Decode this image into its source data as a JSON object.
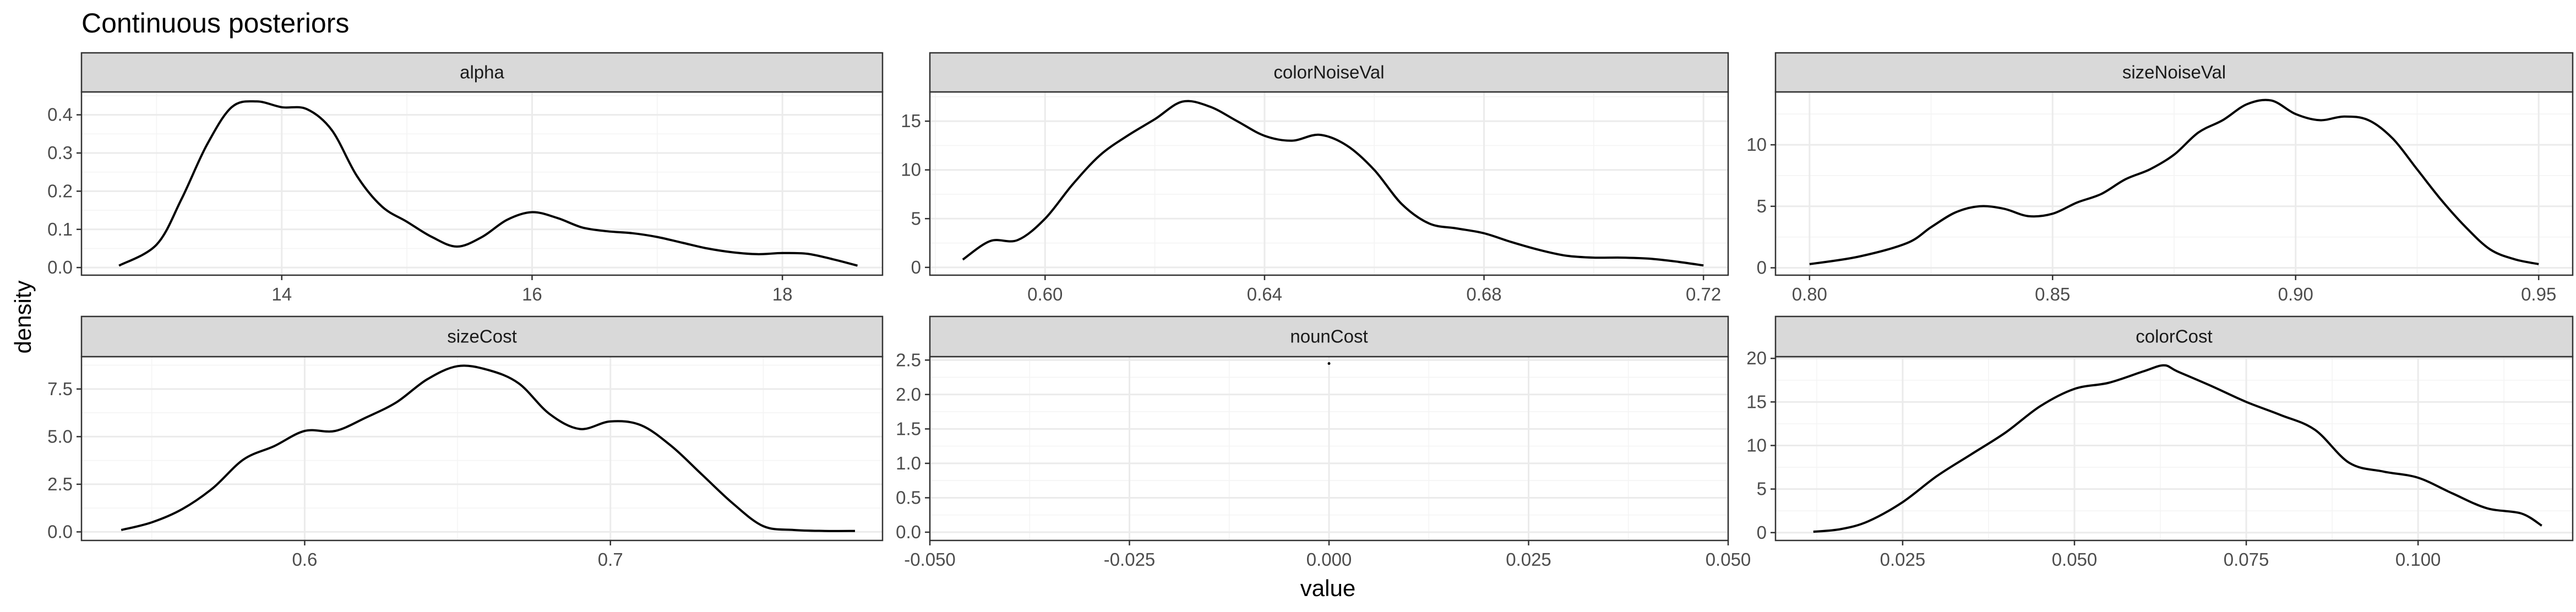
{
  "chart_data": {
    "type": "line",
    "title": "Continuous posteriors",
    "xlabel": "value",
    "ylabel": "density",
    "grid": true,
    "legend": "none",
    "colors": {
      "line": "#000000",
      "strip": "#d9d9d9",
      "grid": "#ebebeb"
    },
    "panels": [
      {
        "name": "alpha",
        "xlim": [
          12.4,
          18.8
        ],
        "ylim": [
          -0.02,
          0.46
        ],
        "xticks": [
          {
            "v": 14,
            "label": "14"
          },
          {
            "v": 16,
            "label": "16"
          },
          {
            "v": 18,
            "label": "18"
          }
        ],
        "yticks": [
          {
            "v": 0,
            "label": "0.0"
          },
          {
            "v": 0.1,
            "label": "0.1"
          },
          {
            "v": 0.2,
            "label": "0.2"
          },
          {
            "v": 0.3,
            "label": "0.3"
          },
          {
            "v": 0.4,
            "label": "0.4"
          }
        ],
        "x": [
          12.7,
          13.0,
          13.2,
          13.4,
          13.6,
          13.8,
          14.0,
          14.2,
          14.4,
          14.6,
          14.8,
          15.0,
          15.2,
          15.4,
          15.6,
          15.8,
          16.0,
          16.2,
          16.4,
          16.6,
          16.8,
          17.0,
          17.2,
          17.4,
          17.6,
          17.8,
          18.0,
          18.2,
          18.4,
          18.6
        ],
        "y": [
          0.005,
          0.06,
          0.18,
          0.32,
          0.42,
          0.435,
          0.42,
          0.415,
          0.36,
          0.24,
          0.16,
          0.12,
          0.08,
          0.055,
          0.08,
          0.125,
          0.145,
          0.13,
          0.105,
          0.095,
          0.09,
          0.08,
          0.065,
          0.05,
          0.04,
          0.035,
          0.038,
          0.036,
          0.022,
          0.005
        ]
      },
      {
        "name": "colorNoiseVal",
        "xlim": [
          0.579,
          0.7245
        ],
        "ylim": [
          -0.8,
          18
        ],
        "xticks": [
          {
            "v": 0.6,
            "label": "0.60"
          },
          {
            "v": 0.64,
            "label": "0.64"
          },
          {
            "v": 0.68,
            "label": "0.68"
          },
          {
            "v": 0.72,
            "label": "0.72"
          }
        ],
        "yticks": [
          {
            "v": 0,
            "label": "0"
          },
          {
            "v": 5,
            "label": "5"
          },
          {
            "v": 10,
            "label": "10"
          },
          {
            "v": 15,
            "label": "15"
          }
        ],
        "x": [
          0.585,
          0.59,
          0.595,
          0.6,
          0.605,
          0.61,
          0.615,
          0.62,
          0.625,
          0.63,
          0.635,
          0.64,
          0.645,
          0.65,
          0.655,
          0.66,
          0.665,
          0.67,
          0.675,
          0.68,
          0.685,
          0.69,
          0.695,
          0.7,
          0.705,
          0.71,
          0.715,
          0.72
        ],
        "y": [
          0.8,
          2.7,
          2.8,
          5.0,
          8.5,
          11.5,
          13.5,
          15.2,
          17.0,
          16.5,
          15.0,
          13.5,
          13.0,
          13.6,
          12.5,
          10.0,
          6.5,
          4.5,
          4.0,
          3.5,
          2.6,
          1.8,
          1.2,
          1.0,
          1.0,
          0.9,
          0.6,
          0.2
        ]
      },
      {
        "name": "sizeNoiseVal",
        "xlim": [
          0.793,
          0.957
        ],
        "ylim": [
          -0.6,
          14.3
        ],
        "xticks": [
          {
            "v": 0.8,
            "label": "0.80"
          },
          {
            "v": 0.85,
            "label": "0.85"
          },
          {
            "v": 0.9,
            "label": "0.90"
          },
          {
            "v": 0.95,
            "label": "0.95"
          }
        ],
        "yticks": [
          {
            "v": 0,
            "label": "0"
          },
          {
            "v": 5,
            "label": "5"
          },
          {
            "v": 10,
            "label": "10"
          }
        ],
        "x": [
          0.8,
          0.81,
          0.82,
          0.825,
          0.83,
          0.835,
          0.84,
          0.845,
          0.85,
          0.855,
          0.86,
          0.865,
          0.87,
          0.875,
          0.88,
          0.885,
          0.89,
          0.895,
          0.9,
          0.905,
          0.91,
          0.915,
          0.92,
          0.925,
          0.93,
          0.935,
          0.94,
          0.945,
          0.95
        ],
        "y": [
          0.3,
          0.9,
          2.0,
          3.3,
          4.5,
          5.0,
          4.8,
          4.2,
          4.4,
          5.3,
          6.0,
          7.2,
          8.0,
          9.2,
          11.0,
          12.0,
          13.3,
          13.6,
          12.5,
          12.0,
          12.3,
          12.0,
          10.5,
          8.0,
          5.5,
          3.3,
          1.5,
          0.7,
          0.3
        ]
      },
      {
        "name": "sizeCost",
        "xlim": [
          0.527,
          0.789
        ],
        "ylim": [
          -0.45,
          9.2
        ],
        "xticks": [
          {
            "v": 0.6,
            "label": "0.6"
          },
          {
            "v": 0.7,
            "label": "0.7"
          }
        ],
        "yticks": [
          {
            "v": 0,
            "label": "0.0"
          },
          {
            "v": 2.5,
            "label": "2.5"
          },
          {
            "v": 5.0,
            "label": "5.0"
          },
          {
            "v": 7.5,
            "label": "7.5"
          }
        ],
        "x": [
          0.54,
          0.55,
          0.56,
          0.57,
          0.58,
          0.59,
          0.6,
          0.61,
          0.62,
          0.63,
          0.64,
          0.65,
          0.66,
          0.67,
          0.68,
          0.69,
          0.7,
          0.71,
          0.72,
          0.73,
          0.74,
          0.75,
          0.76,
          0.77,
          0.78
        ],
        "y": [
          0.1,
          0.5,
          1.2,
          2.3,
          3.8,
          4.5,
          5.3,
          5.3,
          6.0,
          6.8,
          8.0,
          8.7,
          8.5,
          7.8,
          6.2,
          5.4,
          5.8,
          5.6,
          4.5,
          3.0,
          1.5,
          0.3,
          0.1,
          0.05,
          0.05
        ]
      },
      {
        "name": "nounCost",
        "xlim": [
          -0.05,
          0.05
        ],
        "ylim": [
          -0.12,
          2.55
        ],
        "xticks": [
          {
            "v": -0.05,
            "label": "-0.050"
          },
          {
            "v": -0.025,
            "label": "-0.025"
          },
          {
            "v": 0.0,
            "label": "0.000"
          },
          {
            "v": 0.025,
            "label": "0.025"
          },
          {
            "v": 0.05,
            "label": "0.050"
          }
        ],
        "yticks": [
          {
            "v": 0,
            "label": "0.0"
          },
          {
            "v": 0.5,
            "label": "0.5"
          },
          {
            "v": 1.0,
            "label": "1.0"
          },
          {
            "v": 1.5,
            "label": "1.5"
          },
          {
            "v": 2.0,
            "label": "2.0"
          },
          {
            "v": 2.5,
            "label": "2.5"
          }
        ],
        "x": [
          0.0
        ],
        "y": [
          2.45
        ],
        "point_only": true
      },
      {
        "name": "colorCost",
        "xlim": [
          0.0065,
          0.1225
        ],
        "ylim": [
          -0.9,
          20.2
        ],
        "xticks": [
          {
            "v": 0.025,
            "label": "0.025"
          },
          {
            "v": 0.05,
            "label": "0.050"
          },
          {
            "v": 0.075,
            "label": "0.075"
          },
          {
            "v": 0.1,
            "label": "0.100"
          }
        ],
        "yticks": [
          {
            "v": 0,
            "label": "0"
          },
          {
            "v": 5,
            "label": "5"
          },
          {
            "v": 10,
            "label": "10"
          },
          {
            "v": 15,
            "label": "15"
          },
          {
            "v": 20,
            "label": "20"
          }
        ],
        "x": [
          0.012,
          0.016,
          0.02,
          0.025,
          0.03,
          0.035,
          0.04,
          0.045,
          0.05,
          0.055,
          0.06,
          0.063,
          0.065,
          0.07,
          0.075,
          0.08,
          0.085,
          0.09,
          0.095,
          0.1,
          0.105,
          0.11,
          0.115,
          0.118
        ],
        "y": [
          0.1,
          0.4,
          1.3,
          3.5,
          6.5,
          9.0,
          11.5,
          14.5,
          16.5,
          17.2,
          18.5,
          19.2,
          18.5,
          16.8,
          15.0,
          13.5,
          11.8,
          8.0,
          7.0,
          6.3,
          4.5,
          2.8,
          2.2,
          0.8
        ]
      }
    ]
  }
}
